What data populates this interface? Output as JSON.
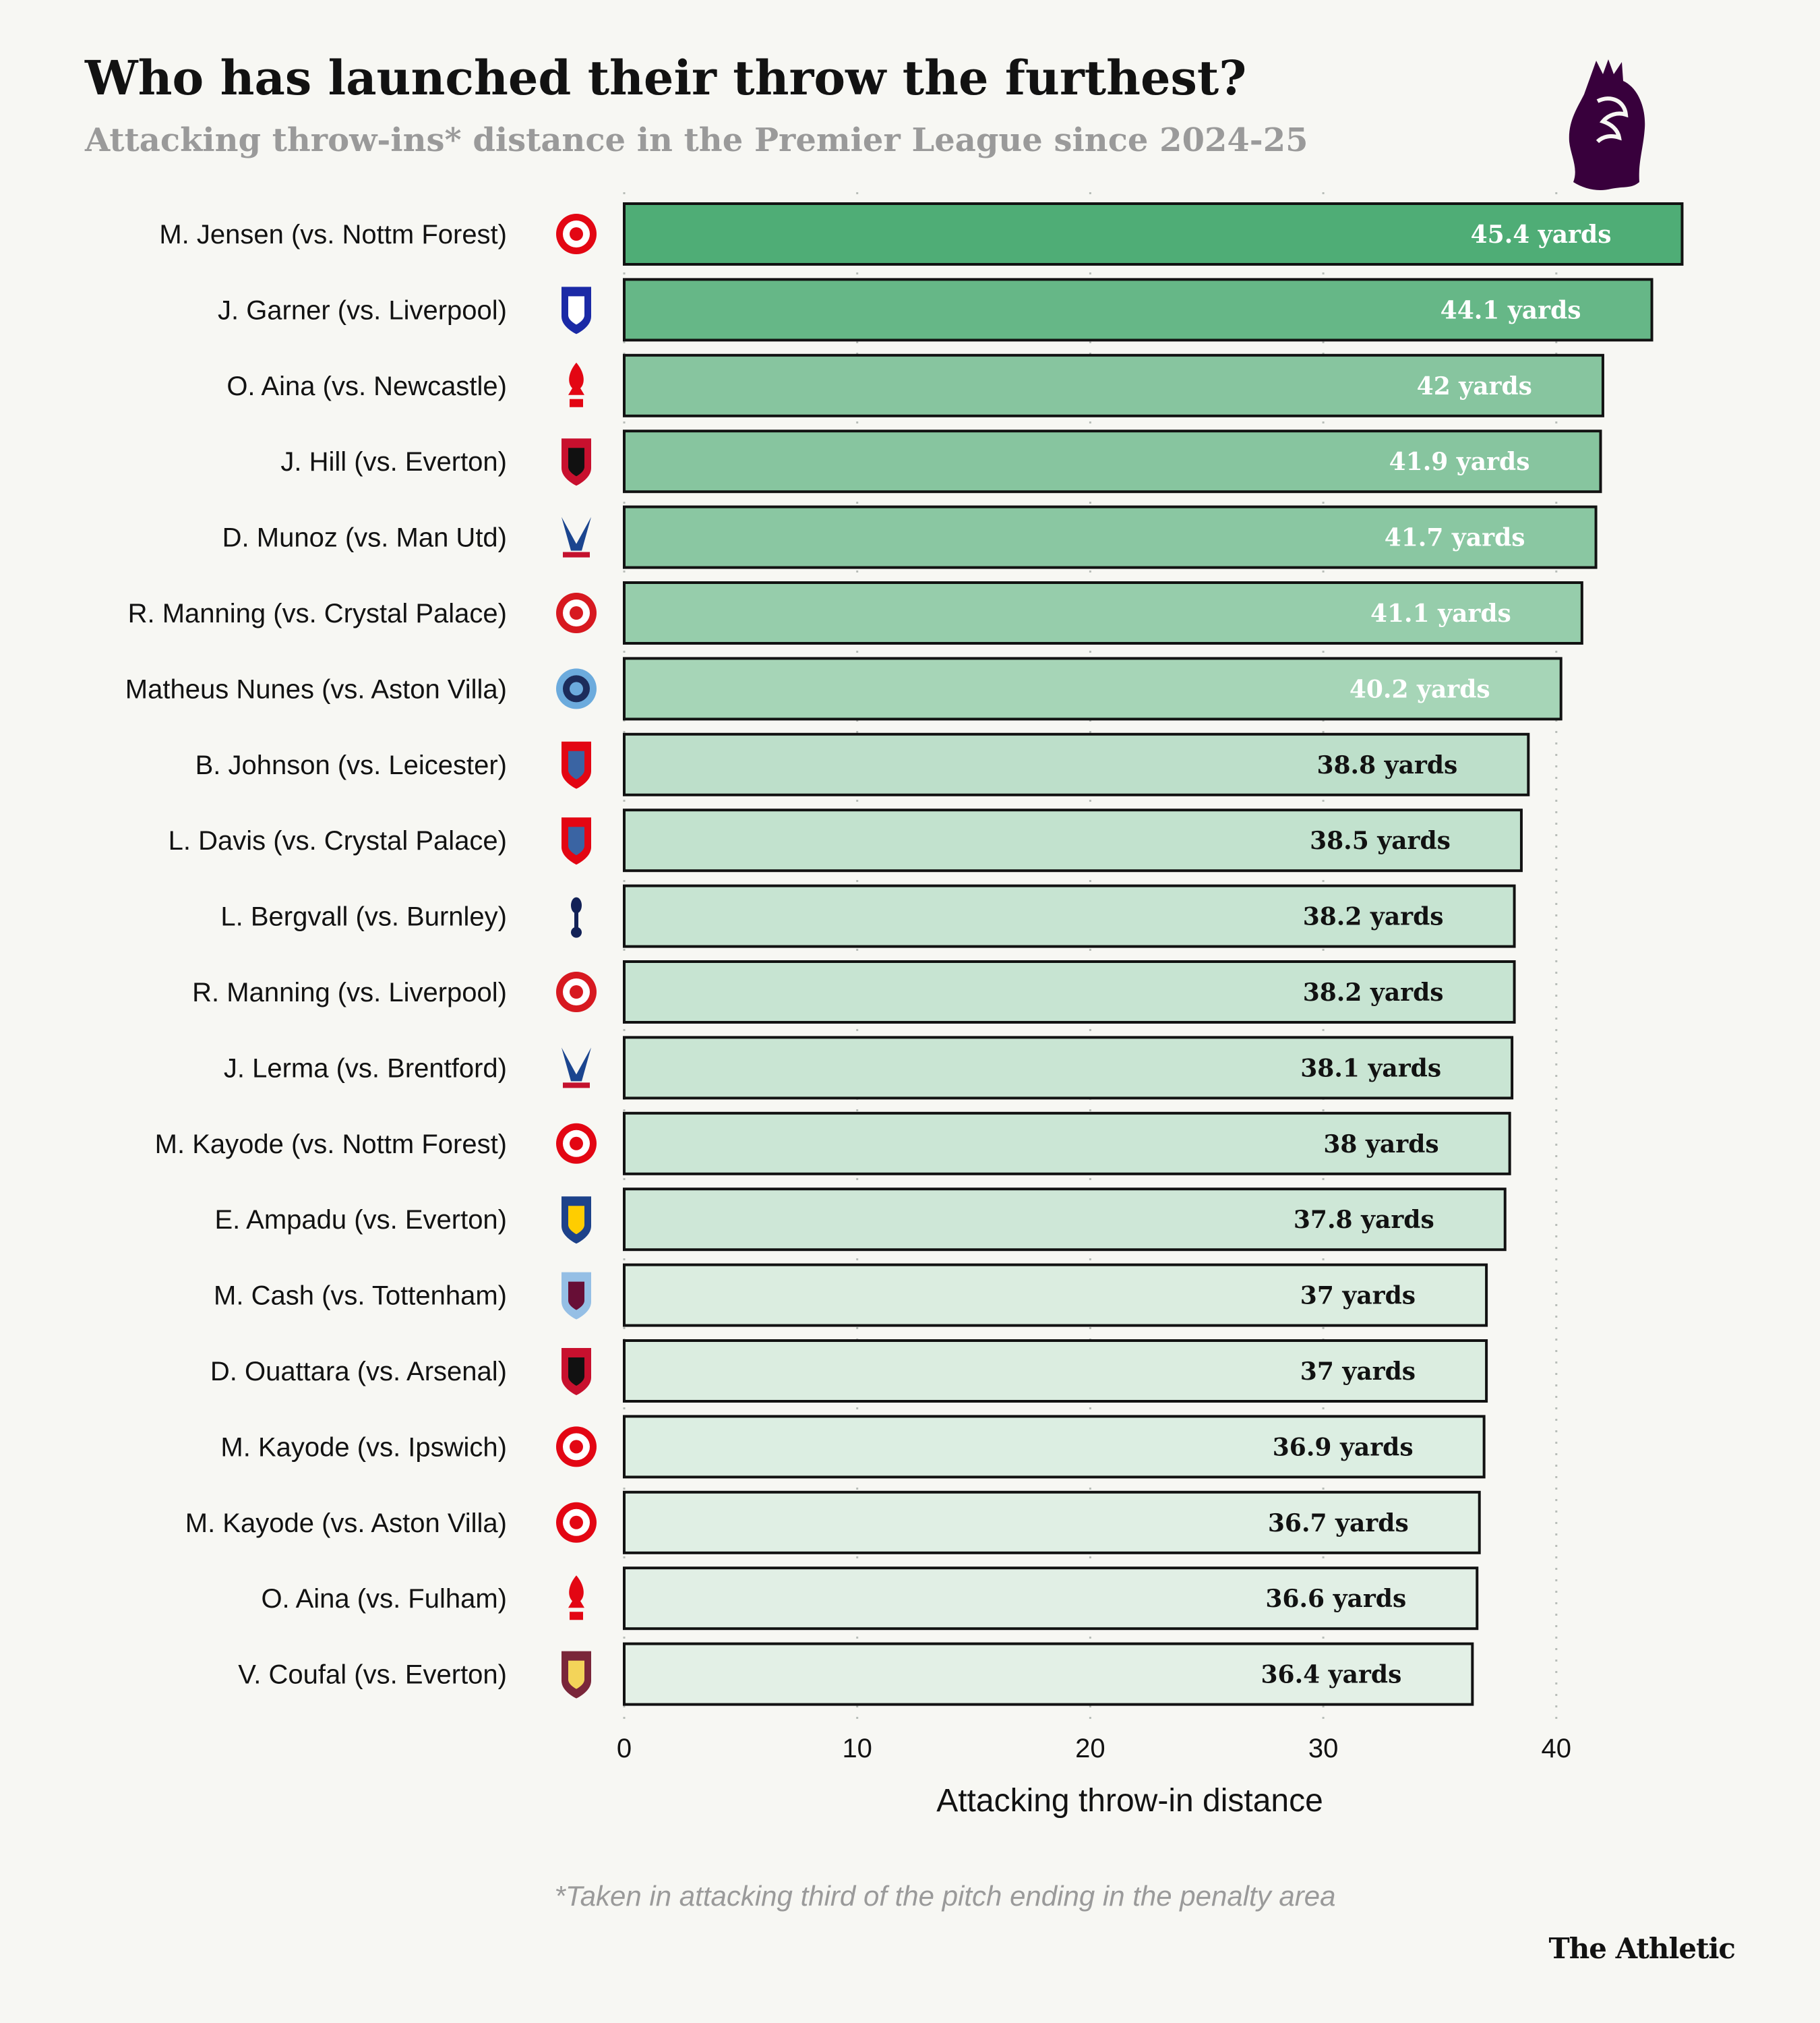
{
  "header": {
    "title": "Who has launched their throw the furthest?",
    "subtitle": "Attacking throw-ins* distance in the Premier League since 2024-25",
    "logo": "premier-league-lion-icon"
  },
  "chart_data": {
    "type": "bar",
    "orientation": "horizontal",
    "xlabel": "Attacking throw-in distance",
    "xlim": [
      0,
      45.4
    ],
    "xticks": [
      "0",
      "10",
      "20",
      "30",
      "40"
    ],
    "grid": "vertical dotted",
    "value_suffix": " yards",
    "rows": [
      {
        "label": "M. Jensen (vs. Nottm Forest)",
        "team_icon": "brentford-crest-icon",
        "value": 45.4,
        "value_label": "45.4 yards",
        "color": "#4fad76",
        "text_color": "#ffffff"
      },
      {
        "label": "J. Garner (vs. Liverpool)",
        "team_icon": "everton-crest-icon",
        "value": 44.1,
        "value_label": "44.1 yards",
        "color": "#66b787",
        "text_color": "#ffffff"
      },
      {
        "label": "O. Aina (vs. Newcastle)",
        "team_icon": "nottm-forest-crest-icon",
        "value": 42,
        "value_label": "42 yards",
        "color": "#87c59f",
        "text_color": "#ffffff"
      },
      {
        "label": "J. Hill (vs. Everton)",
        "team_icon": "bournemouth-crest-icon",
        "value": 41.9,
        "value_label": "41.9 yards",
        "color": "#87c59f",
        "text_color": "#ffffff"
      },
      {
        "label": "D. Munoz (vs. Man Utd)",
        "team_icon": "crystal-palace-crest-icon",
        "value": 41.7,
        "value_label": "41.7 yards",
        "color": "#8ac7a2",
        "text_color": "#ffffff"
      },
      {
        "label": "R. Manning (vs. Crystal Palace)",
        "team_icon": "southampton-crest-icon",
        "value": 41.1,
        "value_label": "41.1 yards",
        "color": "#96cdab",
        "text_color": "#ffffff"
      },
      {
        "label": "Matheus Nunes (vs. Aston Villa)",
        "team_icon": "man-city-crest-icon",
        "value": 40.2,
        "value_label": "40.2 yards",
        "color": "#a6d5b7",
        "text_color": "#ffffff"
      },
      {
        "label": "B. Johnson (vs. Leicester)",
        "team_icon": "ipswich-crest-icon",
        "value": 38.8,
        "value_label": "38.8 yards",
        "color": "#bddfca",
        "text_color": "#121212"
      },
      {
        "label": "L. Davis (vs. Crystal Palace)",
        "team_icon": "ipswich-crest-icon",
        "value": 38.5,
        "value_label": "38.5 yards",
        "color": "#c2e2ce",
        "text_color": "#121212"
      },
      {
        "label": "L. Bergvall (vs. Burnley)",
        "team_icon": "tottenham-crest-icon",
        "value": 38.2,
        "value_label": "38.2 yards",
        "color": "#c7e4d2",
        "text_color": "#121212"
      },
      {
        "label": "R. Manning (vs. Liverpool)",
        "team_icon": "southampton-crest-icon",
        "value": 38.2,
        "value_label": "38.2 yards",
        "color": "#c7e4d2",
        "text_color": "#121212"
      },
      {
        "label": "J. Lerma (vs. Brentford)",
        "team_icon": "crystal-palace-crest-icon",
        "value": 38.1,
        "value_label": "38.1 yards",
        "color": "#c9e5d3",
        "text_color": "#121212"
      },
      {
        "label": "M. Kayode (vs. Nottm Forest)",
        "team_icon": "brentford-crest-icon",
        "value": 38,
        "value_label": "38 yards",
        "color": "#cbe6d5",
        "text_color": "#121212"
      },
      {
        "label": "E. Ampadu (vs. Everton)",
        "team_icon": "leeds-crest-icon",
        "value": 37.8,
        "value_label": "37.8 yards",
        "color": "#cee7d7",
        "text_color": "#121212"
      },
      {
        "label": "M. Cash (vs. Tottenham)",
        "team_icon": "aston-villa-crest-icon",
        "value": 37,
        "value_label": "37 yards",
        "color": "#dbede0",
        "text_color": "#121212"
      },
      {
        "label": "D. Ouattara (vs. Arsenal)",
        "team_icon": "bournemouth-crest-icon",
        "value": 37,
        "value_label": "37 yards",
        "color": "#dbede0",
        "text_color": "#121212"
      },
      {
        "label": "M. Kayode (vs. Ipswich)",
        "team_icon": "brentford-crest-icon",
        "value": 36.9,
        "value_label": "36.9 yards",
        "color": "#dceee2",
        "text_color": "#121212"
      },
      {
        "label": "M. Kayode (vs. Aston Villa)",
        "team_icon": "brentford-crest-icon",
        "value": 36.7,
        "value_label": "36.7 yards",
        "color": "#e0efe4",
        "text_color": "#121212"
      },
      {
        "label": "O. Aina (vs. Fulham)",
        "team_icon": "nottm-forest-crest-icon",
        "value": 36.6,
        "value_label": "36.6 yards",
        "color": "#e1efe5",
        "text_color": "#121212"
      },
      {
        "label": "V. Coufal (vs. Everton)",
        "team_icon": "west-ham-crest-icon",
        "value": 36.4,
        "value_label": "36.4 yards",
        "color": "#e3f0e6",
        "text_color": "#121212"
      }
    ]
  },
  "footer": {
    "note": "*Taken in attacking third of the pitch ending in the penalty area",
    "brand": "The Athletic"
  }
}
